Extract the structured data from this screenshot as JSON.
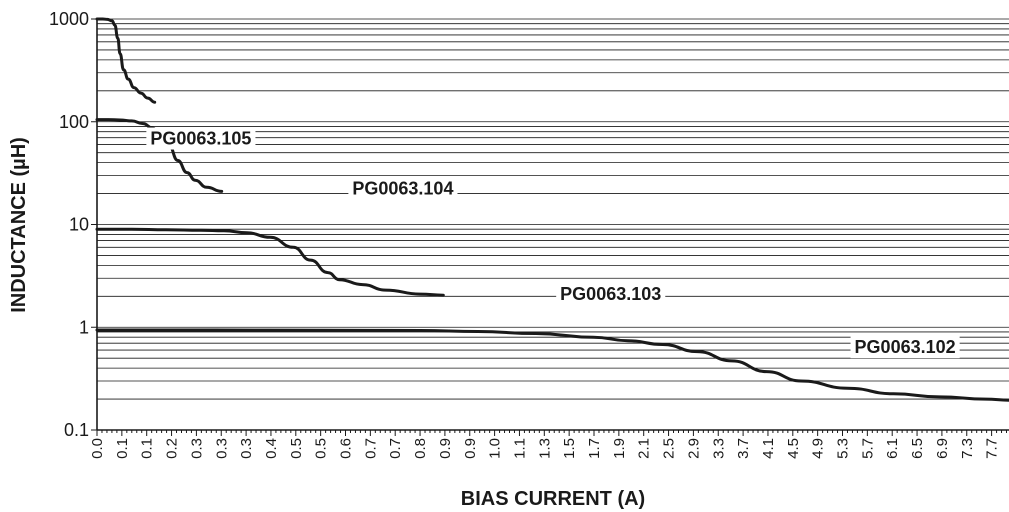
{
  "chart_data": {
    "type": "line",
    "xlabel": "BIAS CURRENT (A)",
    "ylabel": "INDUCTANCE (µH)",
    "yscale": "log",
    "ylim": [
      0.1,
      1000
    ],
    "y_ticks": [
      {
        "value": 1000,
        "label": "1000"
      },
      {
        "value": 100,
        "label": "100"
      },
      {
        "value": 10,
        "label": "10"
      },
      {
        "value": 1,
        "label": "1"
      },
      {
        "value": 0.1,
        "label": "0.1"
      }
    ],
    "xlim": [
      0,
      7.9
    ],
    "x_tick_labels": [
      "0.0",
      "0.1",
      "0.1",
      "0.2",
      "0.3",
      "0.3",
      "0.3",
      "0.4",
      "0.5",
      "0.5",
      "0.6",
      "0.7",
      "0.7",
      "0.8",
      "0.9",
      "0.9",
      "1.0",
      "1.1",
      "1.3",
      "1.5",
      "1.7",
      "1.9",
      "2.1",
      "2.5",
      "2.9",
      "3.3",
      "3.7",
      "4.1",
      "4.5",
      "4.9",
      "5.3",
      "5.7",
      "6.1",
      "6.5",
      "6.9",
      "7.3",
      "7.7"
    ],
    "grid": "horizontal",
    "series": [
      {
        "name": "PG0063.105",
        "points": [
          [
            0.0,
            1000
          ],
          [
            0.05,
            1000
          ],
          [
            0.09,
            990
          ],
          [
            0.13,
            960
          ],
          [
            0.155,
            870
          ],
          [
            0.18,
            650
          ],
          [
            0.2,
            460
          ],
          [
            0.23,
            320
          ],
          [
            0.27,
            260
          ],
          [
            0.32,
            215
          ],
          [
            0.38,
            190
          ],
          [
            0.44,
            170
          ],
          [
            0.5,
            155
          ]
        ]
      },
      {
        "name": "PG0063.104",
        "points": [
          [
            0.0,
            105
          ],
          [
            0.1,
            105
          ],
          [
            0.2,
            104
          ],
          [
            0.3,
            102
          ],
          [
            0.4,
            96
          ],
          [
            0.48,
            87
          ],
          [
            0.55,
            75
          ],
          [
            0.62,
            60
          ],
          [
            0.7,
            42
          ],
          [
            0.78,
            32
          ],
          [
            0.85,
            27
          ],
          [
            0.95,
            23
          ],
          [
            1.08,
            21
          ]
        ]
      },
      {
        "name": "PG0063.103",
        "points": [
          [
            0.0,
            9
          ],
          [
            0.3,
            9
          ],
          [
            0.6,
            8.9
          ],
          [
            0.9,
            8.8
          ],
          [
            1.1,
            8.7
          ],
          [
            1.3,
            8.3
          ],
          [
            1.5,
            7.5
          ],
          [
            1.7,
            6.0
          ],
          [
            1.85,
            4.5
          ],
          [
            2.0,
            3.4
          ],
          [
            2.1,
            2.9
          ],
          [
            2.3,
            2.6
          ],
          [
            2.5,
            2.3
          ],
          [
            2.8,
            2.1
          ],
          [
            3.0,
            2.05
          ]
        ]
      },
      {
        "name": "PG0063.102",
        "points": [
          [
            0.0,
            0.94
          ],
          [
            1.0,
            0.94
          ],
          [
            2.0,
            0.935
          ],
          [
            2.8,
            0.93
          ],
          [
            3.3,
            0.91
          ],
          [
            3.8,
            0.87
          ],
          [
            4.3,
            0.8
          ],
          [
            4.6,
            0.74
          ],
          [
            4.9,
            0.68
          ],
          [
            5.2,
            0.58
          ],
          [
            5.5,
            0.47
          ],
          [
            5.8,
            0.37
          ],
          [
            6.1,
            0.3
          ],
          [
            6.5,
            0.255
          ],
          [
            6.9,
            0.225
          ],
          [
            7.3,
            0.21
          ],
          [
            7.7,
            0.2
          ],
          [
            7.9,
            0.195
          ]
        ]
      }
    ],
    "colors": {
      "line": "#1a1a1a",
      "background": "#ffffff"
    }
  }
}
